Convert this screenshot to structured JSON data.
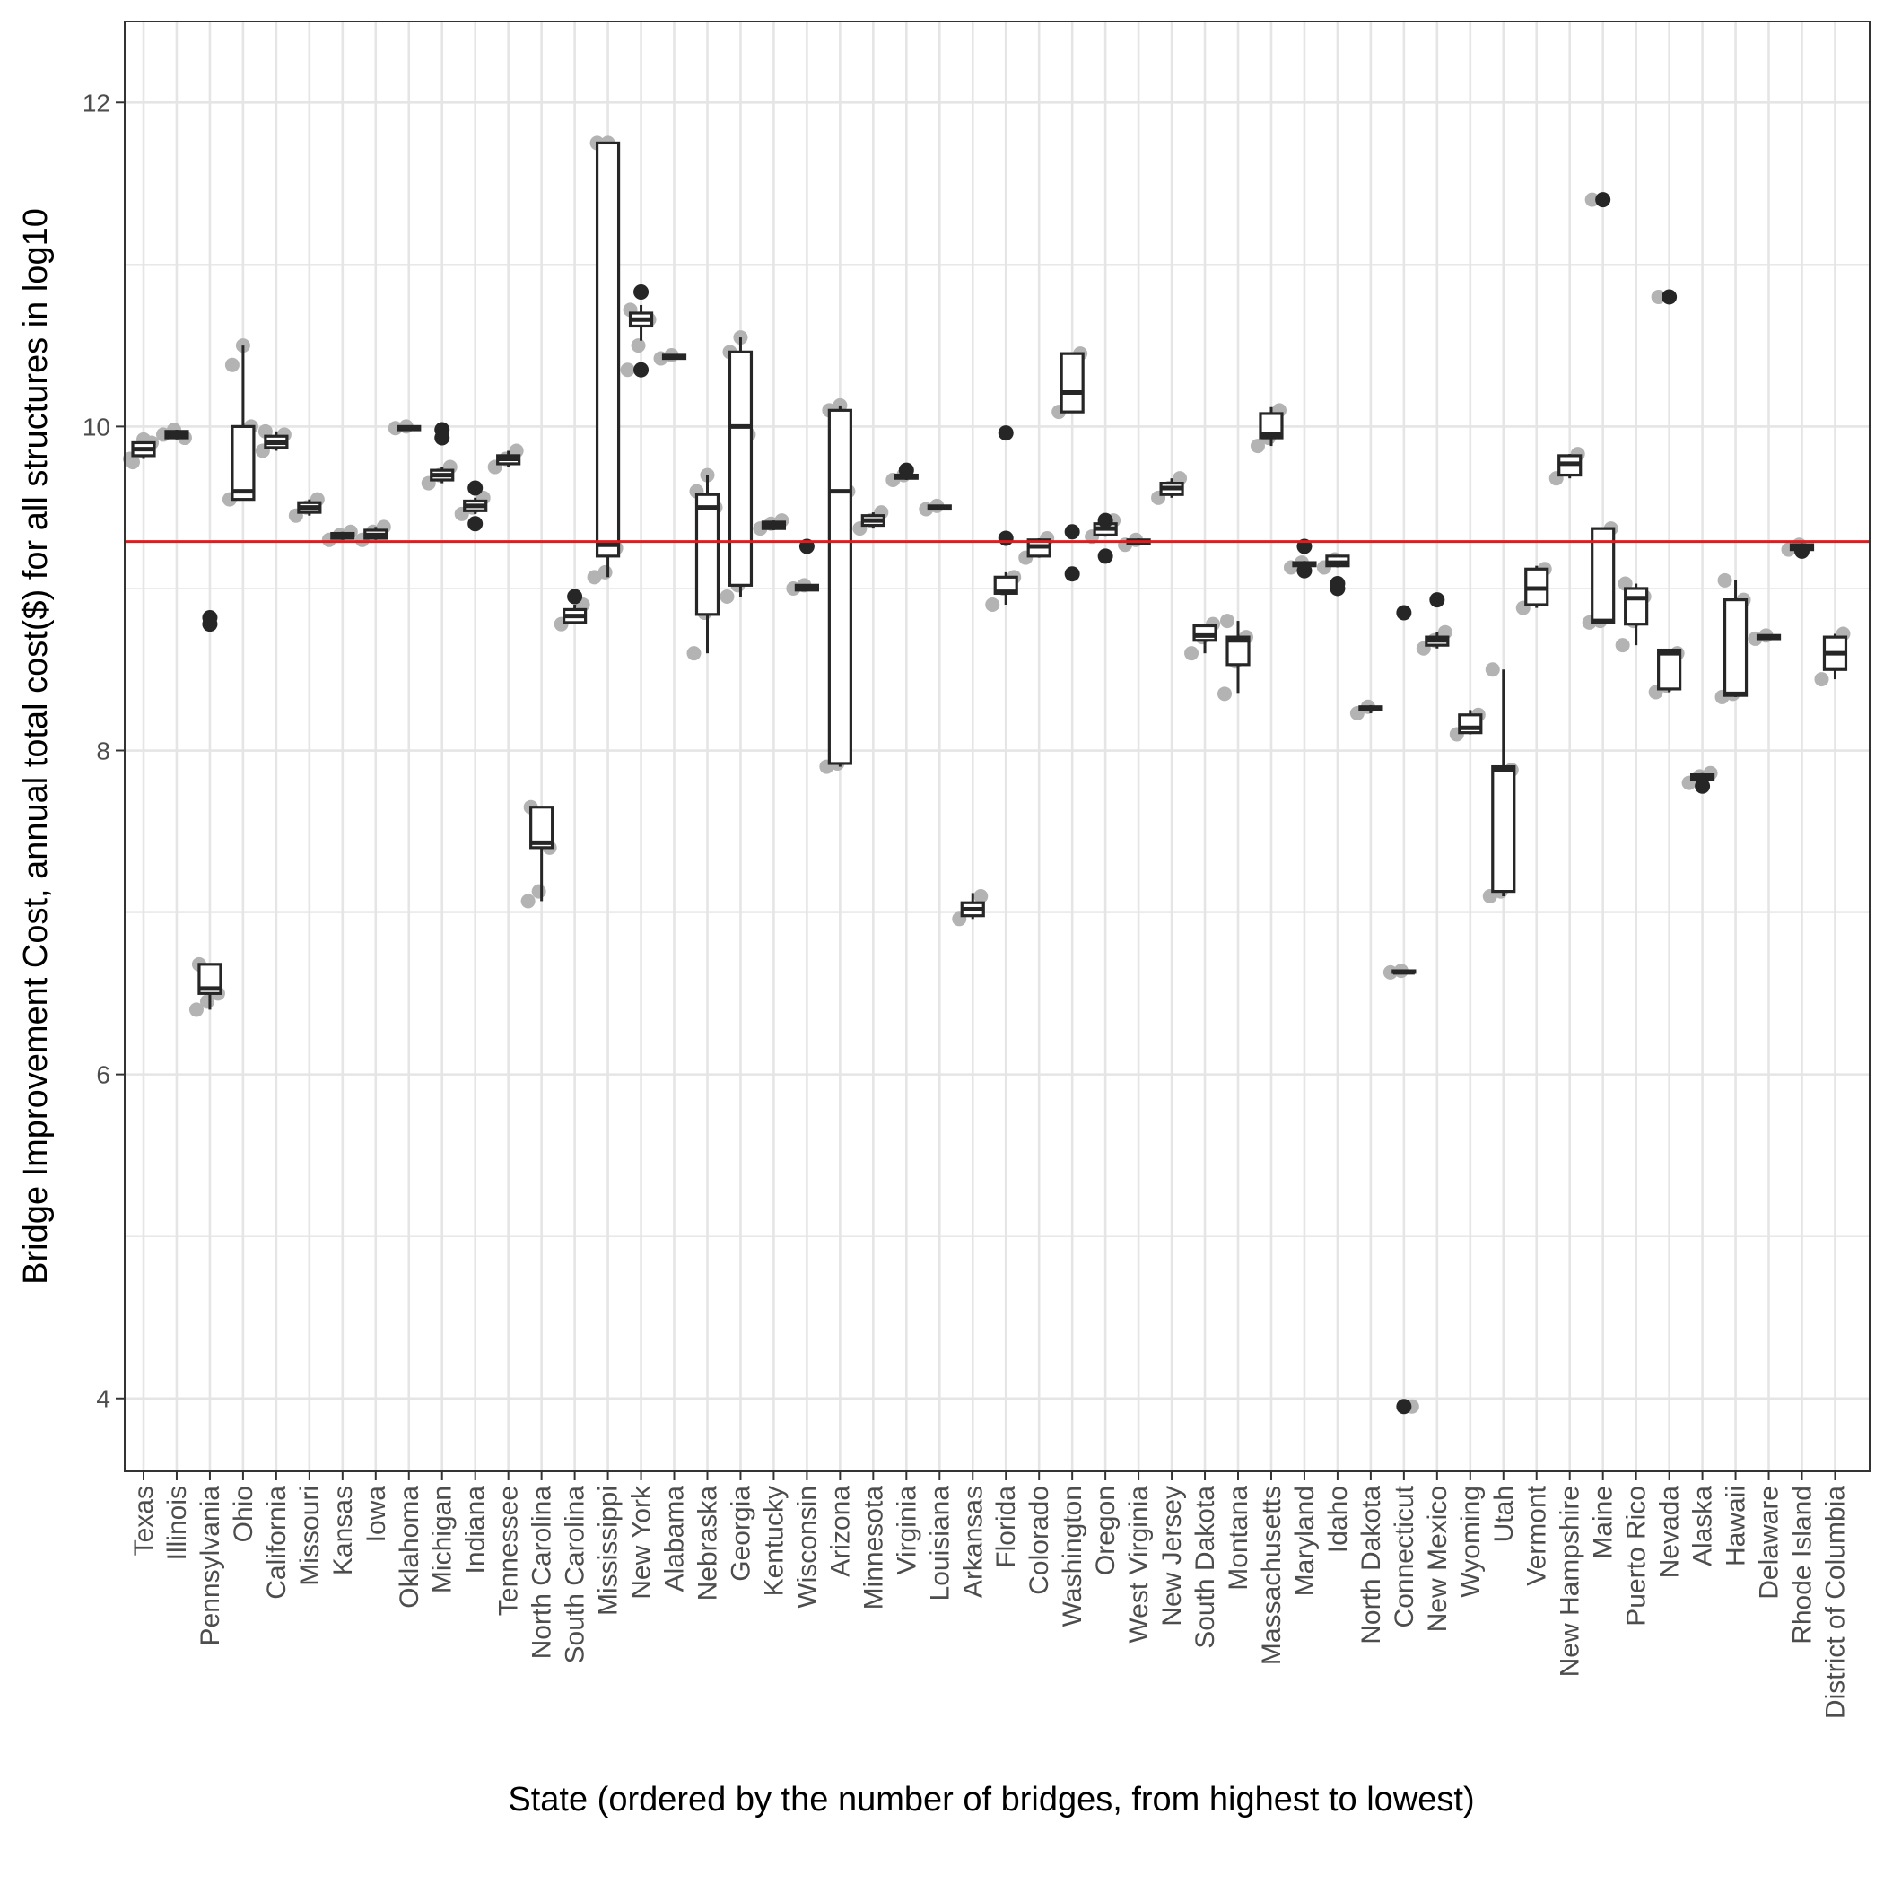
{
  "chart_data": {
    "type": "box",
    "xlabel": "State (ordered by the number of bridges, from highest to lowest)",
    "ylabel": "Bridge Improvement Cost, annual total cost($) for all structures in log10",
    "ylim": [
      3.55,
      12.5
    ],
    "y_ticks": [
      4,
      6,
      8,
      10
    ],
    "y_tick_labels": [
      "4",
      "6",
      "8",
      "10",
      "12"
    ],
    "y_ticks_all": [
      4,
      6,
      8,
      10,
      12
    ],
    "reference_line": {
      "y": 9.29,
      "color": "#e41a1c"
    },
    "grid": true,
    "colors": {
      "box_line": "#262626",
      "points": "#b3b3b3",
      "outliers": "#262626",
      "grid": "#e5e5e5",
      "panel_border": "#333333"
    },
    "categories": [
      "Texas",
      "Illinois",
      "Pennsylvania",
      "Ohio",
      "California",
      "Missouri",
      "Kansas",
      "Iowa",
      "Oklahoma",
      "Michigan",
      "Indiana",
      "Tennessee",
      "North Carolina",
      "South Carolina",
      "Mississippi",
      "New York",
      "Alabama",
      "Nebraska",
      "Georgia",
      "Kentucky",
      "Wisconsin",
      "Arizona",
      "Minnesota",
      "Virginia",
      "Louisiana",
      "Arkansas",
      "Florida",
      "Colorado",
      "Washington",
      "Oregon",
      "West Virginia",
      "New Jersey",
      "South Dakota",
      "Montana",
      "Massachusetts",
      "Maryland",
      "Idaho",
      "North Dakota",
      "Connecticut",
      "New Mexico",
      "Wyoming",
      "Utah",
      "Vermont",
      "New Hampshire",
      "Maine",
      "Puerto Rico",
      "Nevada",
      "Alaska",
      "Hawaii",
      "Delaware",
      "Rhode Island",
      "District of Columbia"
    ],
    "boxes": [
      {
        "q1": 9.82,
        "median": 9.86,
        "q3": 9.9,
        "wlo": 9.8,
        "whi": 9.9,
        "out": [],
        "pts": [
          9.8,
          9.85,
          9.9,
          9.78,
          9.92
        ]
      },
      {
        "q1": 9.93,
        "median": 9.95,
        "q3": 9.97,
        "wlo": 9.92,
        "whi": 9.98,
        "out": [],
        "pts": [
          9.95,
          9.98,
          9.93
        ]
      },
      {
        "q1": 6.5,
        "median": 6.53,
        "q3": 6.68,
        "wlo": 6.4,
        "whi": 6.68,
        "out": [
          8.78,
          8.82
        ],
        "pts": [
          6.4,
          6.45,
          6.5,
          6.68,
          8.82
        ]
      },
      {
        "q1": 9.55,
        "median": 9.6,
        "q3": 10.0,
        "wlo": 9.55,
        "whi": 10.5,
        "out": [],
        "pts": [
          9.55,
          9.6,
          10.0,
          10.38,
          10.5
        ]
      },
      {
        "q1": 9.87,
        "median": 9.9,
        "q3": 9.94,
        "wlo": 9.85,
        "whi": 9.97,
        "out": [],
        "pts": [
          9.85,
          9.9,
          9.95,
          9.97
        ]
      },
      {
        "q1": 9.47,
        "median": 9.5,
        "q3": 9.53,
        "wlo": 9.45,
        "whi": 9.55,
        "out": [],
        "pts": [
          9.45,
          9.5,
          9.55
        ]
      },
      {
        "q1": 9.31,
        "median": 9.32,
        "q3": 9.34,
        "wlo": 9.3,
        "whi": 9.35,
        "out": [],
        "pts": [
          9.3,
          9.33,
          9.35
        ]
      },
      {
        "q1": 9.31,
        "median": 9.33,
        "q3": 9.36,
        "wlo": 9.3,
        "whi": 9.38,
        "out": [],
        "pts": [
          9.3,
          9.35,
          9.38
        ]
      },
      {
        "q1": 9.98,
        "median": 9.99,
        "q3": 10.0,
        "wlo": 9.98,
        "whi": 10.0,
        "out": [],
        "pts": [
          9.99,
          10.0
        ]
      },
      {
        "q1": 9.67,
        "median": 9.7,
        "q3": 9.73,
        "wlo": 9.65,
        "whi": 9.75,
        "out": [
          9.93,
          9.98
        ],
        "pts": [
          9.65,
          9.7,
          9.75
        ]
      },
      {
        "q1": 9.48,
        "median": 9.51,
        "q3": 9.54,
        "wlo": 9.46,
        "whi": 9.56,
        "out": [
          9.4,
          9.62
        ],
        "pts": [
          9.46,
          9.5,
          9.56
        ]
      },
      {
        "q1": 9.77,
        "median": 9.8,
        "q3": 9.82,
        "wlo": 9.75,
        "whi": 9.85,
        "out": [],
        "pts": [
          9.75,
          9.8,
          9.85
        ]
      },
      {
        "q1": 7.4,
        "median": 7.43,
        "q3": 7.65,
        "wlo": 7.07,
        "whi": 7.65,
        "out": [],
        "pts": [
          7.07,
          7.13,
          7.4,
          7.65
        ]
      },
      {
        "q1": 8.79,
        "median": 8.83,
        "q3": 8.87,
        "wlo": 8.78,
        "whi": 8.9,
        "out": [
          8.95
        ],
        "pts": [
          8.78,
          8.83,
          8.9
        ]
      },
      {
        "q1": 9.2,
        "median": 9.27,
        "q3": 11.75,
        "wlo": 9.07,
        "whi": 11.75,
        "out": [],
        "pts": [
          9.07,
          9.1,
          9.25,
          11.75,
          11.75
        ]
      },
      {
        "q1": 10.62,
        "median": 10.66,
        "q3": 10.7,
        "wlo": 10.53,
        "whi": 10.75,
        "out": [
          10.35,
          10.83
        ],
        "pts": [
          10.35,
          10.5,
          10.66,
          10.72
        ]
      },
      {
        "q1": 10.42,
        "median": 10.43,
        "q3": 10.44,
        "wlo": 10.42,
        "whi": 10.44,
        "out": [],
        "pts": [
          10.42,
          10.44
        ]
      },
      {
        "q1": 8.84,
        "median": 9.5,
        "q3": 9.58,
        "wlo": 8.6,
        "whi": 9.7,
        "out": [],
        "pts": [
          8.6,
          8.85,
          9.5,
          9.6,
          9.7
        ]
      },
      {
        "q1": 9.02,
        "median": 10.0,
        "q3": 10.46,
        "wlo": 8.95,
        "whi": 10.55,
        "out": [],
        "pts": [
          8.95,
          9.02,
          9.95,
          10.46,
          10.55
        ]
      },
      {
        "q1": 9.37,
        "median": 9.39,
        "q3": 9.41,
        "wlo": 9.36,
        "whi": 9.42,
        "out": [],
        "pts": [
          9.37,
          9.4,
          9.42
        ]
      },
      {
        "q1": 8.99,
        "median": 9.01,
        "q3": 9.02,
        "wlo": 8.99,
        "whi": 9.02,
        "out": [
          9.26
        ],
        "pts": [
          9.0,
          9.02
        ]
      },
      {
        "q1": 7.92,
        "median": 9.6,
        "q3": 10.1,
        "wlo": 7.9,
        "whi": 10.13,
        "out": [],
        "pts": [
          7.9,
          7.92,
          9.6,
          10.1,
          10.13
        ]
      },
      {
        "q1": 9.39,
        "median": 9.42,
        "q3": 9.45,
        "wlo": 9.37,
        "whi": 9.47,
        "out": [],
        "pts": [
          9.37,
          9.42,
          9.47
        ]
      },
      {
        "q1": 9.68,
        "median": 9.69,
        "q3": 9.7,
        "wlo": 9.67,
        "whi": 9.72,
        "out": [
          9.73
        ],
        "pts": [
          9.67,
          9.7
        ]
      },
      {
        "q1": 9.49,
        "median": 9.5,
        "q3": 9.51,
        "wlo": 9.49,
        "whi": 9.51,
        "out": [],
        "pts": [
          9.49,
          9.51
        ]
      },
      {
        "q1": 6.98,
        "median": 7.02,
        "q3": 7.06,
        "wlo": 6.96,
        "whi": 7.12,
        "out": [],
        "pts": [
          6.96,
          7.02,
          7.1
        ]
      },
      {
        "q1": 8.97,
        "median": 8.98,
        "q3": 9.07,
        "wlo": 8.9,
        "whi": 9.1,
        "out": [
          9.31,
          9.96
        ],
        "pts": [
          8.9,
          9.0,
          9.07
        ]
      },
      {
        "q1": 9.2,
        "median": 9.26,
        "q3": 9.3,
        "wlo": 9.19,
        "whi": 9.31,
        "out": [],
        "pts": [
          9.19,
          9.25,
          9.31
        ]
      },
      {
        "q1": 10.09,
        "median": 10.21,
        "q3": 10.45,
        "wlo": 10.09,
        "whi": 10.45,
        "out": [
          9.09,
          9.35
        ],
        "pts": [
          10.09,
          10.2,
          10.45
        ]
      },
      {
        "q1": 9.33,
        "median": 9.37,
        "q3": 9.4,
        "wlo": 9.32,
        "whi": 9.42,
        "out": [
          9.2,
          9.42
        ],
        "pts": [
          9.32,
          9.38,
          9.42
        ]
      },
      {
        "q1": 9.28,
        "median": 9.29,
        "q3": 9.3,
        "wlo": 9.27,
        "whi": 9.31,
        "out": [],
        "pts": [
          9.27,
          9.3
        ]
      },
      {
        "q1": 9.58,
        "median": 9.62,
        "q3": 9.65,
        "wlo": 9.56,
        "whi": 9.68,
        "out": [],
        "pts": [
          9.56,
          9.62,
          9.68
        ]
      },
      {
        "q1": 8.68,
        "median": 8.71,
        "q3": 8.77,
        "wlo": 8.6,
        "whi": 8.78,
        "out": [],
        "pts": [
          8.6,
          8.7,
          8.78
        ]
      },
      {
        "q1": 8.53,
        "median": 8.68,
        "q3": 8.7,
        "wlo": 8.35,
        "whi": 8.8,
        "out": [],
        "pts": [
          8.35,
          8.55,
          8.7,
          8.8
        ]
      },
      {
        "q1": 9.93,
        "median": 9.95,
        "q3": 10.08,
        "wlo": 9.88,
        "whi": 10.12,
        "out": [],
        "pts": [
          9.88,
          9.93,
          10.1
        ]
      },
      {
        "q1": 9.14,
        "median": 9.15,
        "q3": 9.16,
        "wlo": 9.12,
        "whi": 9.17,
        "out": [
          9.11,
          9.26
        ],
        "pts": [
          9.13,
          9.16
        ]
      },
      {
        "q1": 9.14,
        "median": 9.16,
        "q3": 9.2,
        "wlo": 9.13,
        "whi": 9.2,
        "out": [
          9.0,
          9.03
        ],
        "pts": [
          9.13,
          9.18
        ]
      },
      {
        "q1": 8.25,
        "median": 8.26,
        "q3": 8.27,
        "wlo": 8.23,
        "whi": 8.28,
        "out": [],
        "pts": [
          8.23,
          8.27
        ]
      },
      {
        "q1": 6.63,
        "median": 6.63,
        "q3": 6.64,
        "wlo": 6.63,
        "whi": 6.64,
        "out": [
          3.95,
          8.85
        ],
        "pts": [
          6.63,
          6.64,
          3.95
        ]
      },
      {
        "q1": 8.65,
        "median": 8.68,
        "q3": 8.7,
        "wlo": 8.63,
        "whi": 8.73,
        "out": [
          8.93
        ],
        "pts": [
          8.63,
          8.68,
          8.73
        ]
      },
      {
        "q1": 8.11,
        "median": 8.14,
        "q3": 8.22,
        "wlo": 8.1,
        "whi": 8.25,
        "out": [],
        "pts": [
          8.1,
          8.15,
          8.22
        ]
      },
      {
        "q1": 7.13,
        "median": 7.88,
        "q3": 7.9,
        "wlo": 7.1,
        "whi": 8.5,
        "out": [],
        "pts": [
          7.1,
          7.13,
          7.88,
          8.5
        ]
      },
      {
        "q1": 8.9,
        "median": 9.0,
        "q3": 9.12,
        "wlo": 8.88,
        "whi": 9.14,
        "out": [],
        "pts": [
          8.88,
          9.0,
          9.12
        ]
      },
      {
        "q1": 9.7,
        "median": 9.77,
        "q3": 9.82,
        "wlo": 9.68,
        "whi": 9.83,
        "out": [],
        "pts": [
          9.68,
          9.77,
          9.83
        ]
      },
      {
        "q1": 8.79,
        "median": 8.8,
        "q3": 9.37,
        "wlo": 8.79,
        "whi": 9.37,
        "out": [
          11.4
        ],
        "pts": [
          8.79,
          8.8,
          9.37,
          11.4
        ]
      },
      {
        "q1": 8.78,
        "median": 8.94,
        "q3": 9.0,
        "wlo": 8.65,
        "whi": 9.03,
        "out": [],
        "pts": [
          8.65,
          8.8,
          8.95,
          9.03
        ]
      },
      {
        "q1": 8.38,
        "median": 8.6,
        "q3": 8.62,
        "wlo": 8.36,
        "whi": 8.62,
        "out": [
          10.8
        ],
        "pts": [
          8.36,
          8.4,
          8.6,
          10.8
        ]
      },
      {
        "q1": 7.82,
        "median": 7.84,
        "q3": 7.85,
        "wlo": 7.8,
        "whi": 7.86,
        "out": [
          7.78
        ],
        "pts": [
          7.8,
          7.84,
          7.86
        ]
      },
      {
        "q1": 8.34,
        "median": 8.35,
        "q3": 8.93,
        "wlo": 8.33,
        "whi": 9.05,
        "out": [],
        "pts": [
          8.33,
          8.35,
          8.93,
          9.05
        ]
      },
      {
        "q1": 8.69,
        "median": 8.7,
        "q3": 8.71,
        "wlo": 8.69,
        "whi": 8.71,
        "out": [],
        "pts": [
          8.69,
          8.71
        ]
      },
      {
        "q1": 9.24,
        "median": 9.26,
        "q3": 9.27,
        "wlo": 9.23,
        "whi": 9.28,
        "out": [
          9.23
        ],
        "pts": [
          9.24,
          9.27
        ]
      },
      {
        "q1": 8.5,
        "median": 8.6,
        "q3": 8.7,
        "wlo": 8.44,
        "whi": 8.72,
        "out": [],
        "pts": [
          8.44,
          8.6,
          8.72
        ]
      }
    ]
  }
}
